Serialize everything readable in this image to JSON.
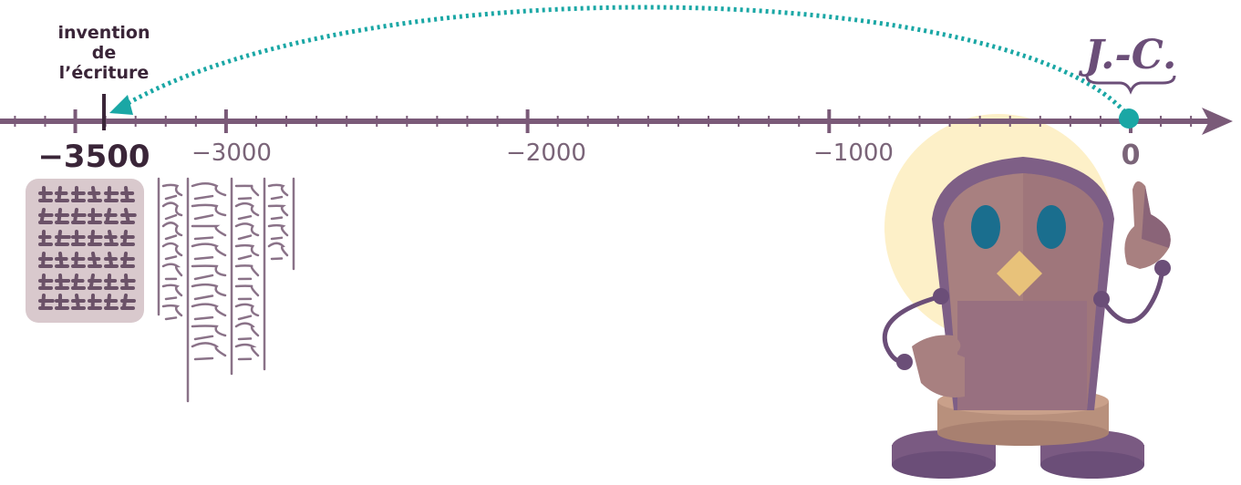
{
  "timeline": {
    "ticks": [
      {
        "value": -3500,
        "label": "−3500",
        "highlight": true
      },
      {
        "value": -3000,
        "label": "−3000",
        "highlight": false
      },
      {
        "value": -2000,
        "label": "−2000",
        "highlight": false
      },
      {
        "value": -1000,
        "label": "−1000",
        "highlight": false
      },
      {
        "value": 0,
        "label": "0",
        "highlight": true
      }
    ],
    "minor_step": 100
  },
  "annotation": {
    "line1": "invention",
    "line2": "de",
    "line3": "l’écriture"
  },
  "era_label": "J.-C.",
  "colors": {
    "axis": "#7a5a78",
    "arc": "#1aa7a5",
    "dark_text": "#3a2538",
    "tablet": "#d9c9cd",
    "glyph": "#6b5268",
    "glow": "#fdf0c8"
  },
  "icons": {
    "tablet": "cuneiform-tablet-icon",
    "papyrus": "hieroglyph-papyrus-icon",
    "owl": "owl-mascot-icon"
  }
}
